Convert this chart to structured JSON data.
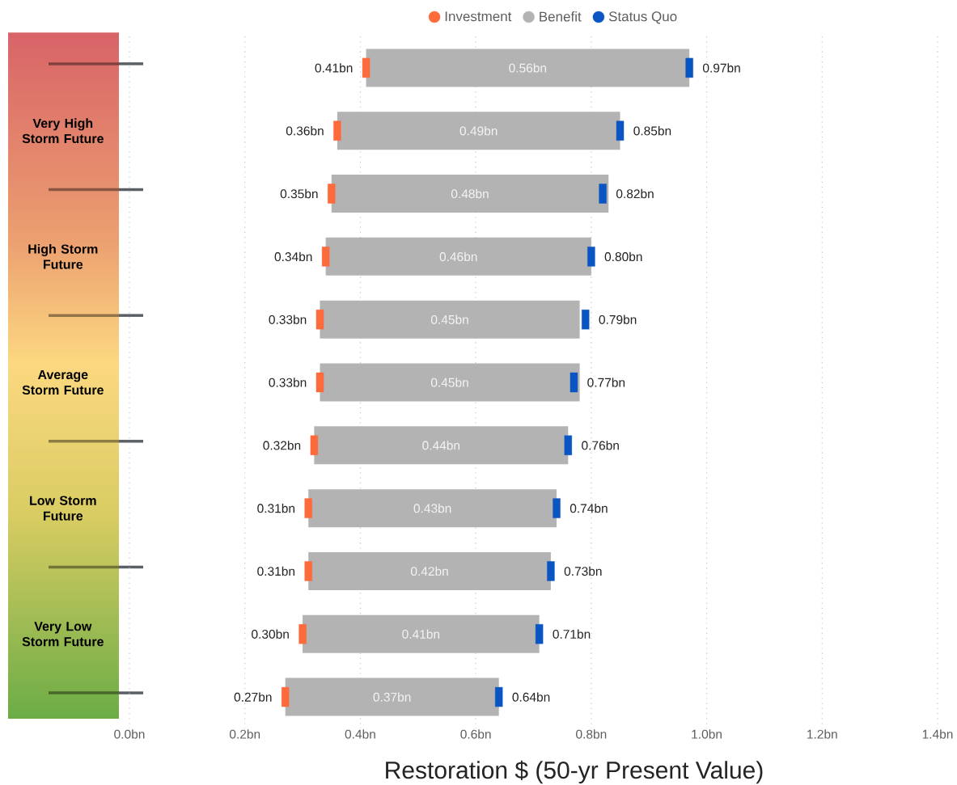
{
  "chart_data": {
    "type": "bar",
    "orientation": "horizontal",
    "xlabel": "Restoration $ (50-yr Present Value)",
    "categories": [
      null,
      "Very High Storm Future",
      null,
      "High Storm Future",
      null,
      "Average Storm Future",
      null,
      "Low Storm Future",
      null,
      "Very Low Storm Future",
      null
    ],
    "series": [
      {
        "name": "Investment",
        "type": "scatter",
        "marker": "square",
        "color": "#fd6a3b",
        "values": [
          0.41,
          0.36,
          0.35,
          0.34,
          0.33,
          0.33,
          0.32,
          0.31,
          0.31,
          0.3,
          0.27
        ],
        "value_labels": [
          "0.41bn",
          "0.36bn",
          "0.35bn",
          "0.34bn",
          "0.33bn",
          "0.33bn",
          "0.32bn",
          "0.31bn",
          "0.31bn",
          "0.30bn",
          "0.27bn"
        ]
      },
      {
        "name": "Benefit",
        "type": "bar",
        "color": "#b3b3b3",
        "base": [
          0.41,
          0.36,
          0.35,
          0.34,
          0.33,
          0.33,
          0.32,
          0.31,
          0.31,
          0.3,
          0.27
        ],
        "values": [
          0.56,
          0.49,
          0.48,
          0.46,
          0.45,
          0.45,
          0.44,
          0.43,
          0.42,
          0.41,
          0.37
        ],
        "value_labels": [
          "0.56bn",
          "0.49bn",
          "0.48bn",
          "0.46bn",
          "0.45bn",
          "0.45bn",
          "0.44bn",
          "0.43bn",
          "0.42bn",
          "0.41bn",
          "0.37bn"
        ]
      },
      {
        "name": "Status Quo",
        "type": "scatter",
        "marker": "square",
        "color": "#0b55c3",
        "values": [
          0.97,
          0.85,
          0.82,
          0.8,
          0.79,
          0.77,
          0.76,
          0.74,
          0.73,
          0.71,
          0.64
        ],
        "value_labels": [
          "0.97bn",
          "0.85bn",
          "0.82bn",
          "0.80bn",
          "0.79bn",
          "0.77bn",
          "0.76bn",
          "0.74bn",
          "0.73bn",
          "0.71bn",
          "0.64bn"
        ]
      }
    ],
    "xlim": [
      0,
      1.4
    ],
    "xticks": [
      {
        "value": 0,
        "label": "0.0bn"
      },
      {
        "value": 0.2,
        "label": "0.2bn"
      },
      {
        "value": 0.4,
        "label": "0.4bn"
      },
      {
        "value": 0.6,
        "label": "0.6bn"
      },
      {
        "value": 0.8,
        "label": "0.8bn"
      },
      {
        "value": 1.0,
        "label": "1.0bn"
      },
      {
        "value": 1.2,
        "label": "1.2bn"
      },
      {
        "value": 1.4,
        "label": "1.4bn"
      }
    ],
    "grid": "x",
    "legend": "top"
  }
}
